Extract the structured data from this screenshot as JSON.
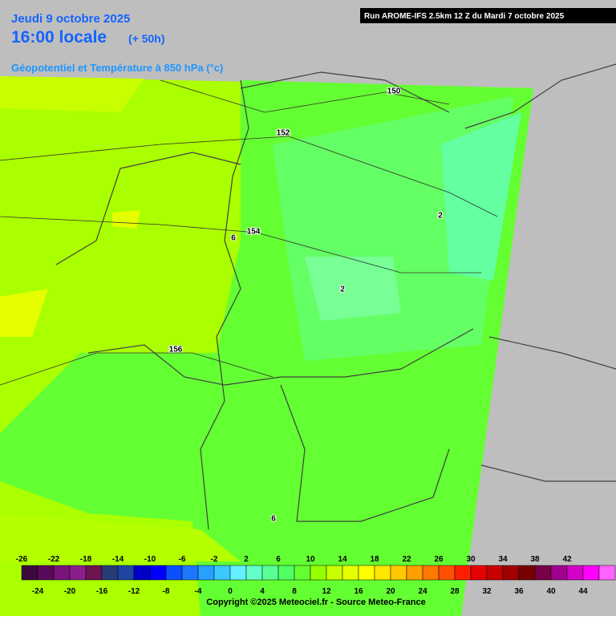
{
  "header": {
    "date": "Jeudi 9 octobre 2025",
    "time": "16:00 locale",
    "lead": "(+ 50h)",
    "field": "Géopotentiel et Température à 850 hPa (°c)",
    "run": "Run AROME-IFS 2.5km 12 Z du Mardi 7 octobre 2025"
  },
  "contour_labels": [
    "150",
    "152",
    "154",
    "156",
    "2",
    "6",
    "2",
    "6"
  ],
  "legend": {
    "values": [
      -26,
      -24,
      -22,
      -20,
      -18,
      -16,
      -14,
      -12,
      -10,
      -8,
      -6,
      -4,
      -2,
      0,
      2,
      4,
      6,
      8,
      10,
      12,
      14,
      16,
      18,
      20,
      22,
      24,
      26,
      28,
      30,
      32,
      34,
      36,
      38,
      40,
      42,
      44
    ],
    "colors": [
      "#3c0a3c",
      "#5a0a5a",
      "#78147a",
      "#8c1e8c",
      "#6e1450",
      "#283c78",
      "#1e46a0",
      "#0000c8",
      "#0000ff",
      "#0a50ff",
      "#1e78ff",
      "#28a0ff",
      "#3cc8ff",
      "#64f0ff",
      "#64ffc8",
      "#5aff96",
      "#50ff64",
      "#64ff32",
      "#96ff00",
      "#c8ff00",
      "#e6ff00",
      "#ffff00",
      "#ffe600",
      "#ffc800",
      "#ffa000",
      "#ff7800",
      "#ff5000",
      "#ff1e00",
      "#e60000",
      "#c80000",
      "#a00000",
      "#780000",
      "#780046",
      "#a0008c",
      "#d200c8",
      "#ff00ff",
      "#ff64ff"
    ]
  },
  "footer": "Copyright ©2025 Meteociel.fr - Source Meteo-France"
}
